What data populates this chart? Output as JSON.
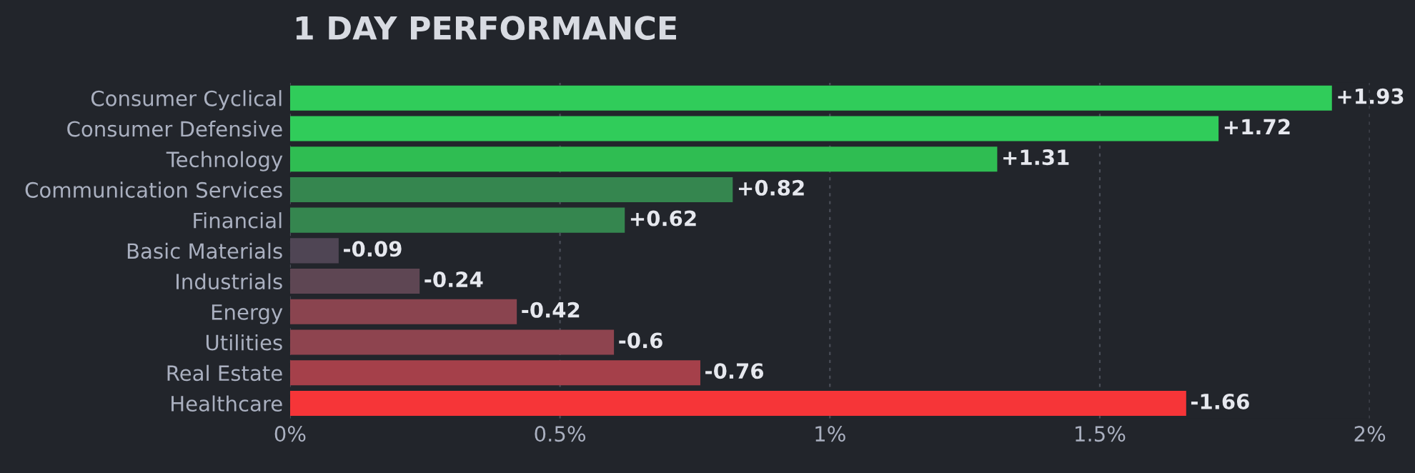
{
  "chart_data": {
    "type": "bar",
    "orientation": "horizontal",
    "title": "1 DAY PERFORMANCE",
    "categories": [
      "Consumer Cyclical",
      "Consumer Defensive",
      "Technology",
      "Communication Services",
      "Financial",
      "Basic Materials",
      "Industrials",
      "Energy",
      "Utilities",
      "Real Estate",
      "Healthcare"
    ],
    "values": [
      1.93,
      1.72,
      1.31,
      0.82,
      0.62,
      -0.09,
      -0.24,
      -0.42,
      -0.6,
      -0.76,
      -1.66
    ],
    "base": [
      0,
      0,
      0,
      0,
      0,
      0.09,
      0.24,
      0.42,
      0.6,
      0.76,
      1.66
    ],
    "value_labels": [
      "+1.93",
      "+1.72",
      "+1.31",
      "+0.82",
      "+0.62",
      "-0.09",
      "-0.24",
      "-0.42",
      "-0.6",
      "-0.76",
      "-1.66"
    ],
    "colors": [
      "#30cc5a",
      "#30cc5a",
      "#2fbd52",
      "#35864f",
      "#35864f",
      "#4f4554",
      "#5e4653",
      "#8a444f",
      "#8e444f",
      "#a5404a",
      "#f63538"
    ],
    "xlim": [
      0,
      2.0
    ],
    "xticks": [
      {
        "value": 0,
        "label": "0%"
      },
      {
        "value": 0.5,
        "label": "0.5%"
      },
      {
        "value": 1,
        "label": "1%"
      },
      {
        "value": 1.5,
        "label": "1.5%"
      },
      {
        "value": 2,
        "label": "2%"
      }
    ],
    "grid": "x"
  }
}
